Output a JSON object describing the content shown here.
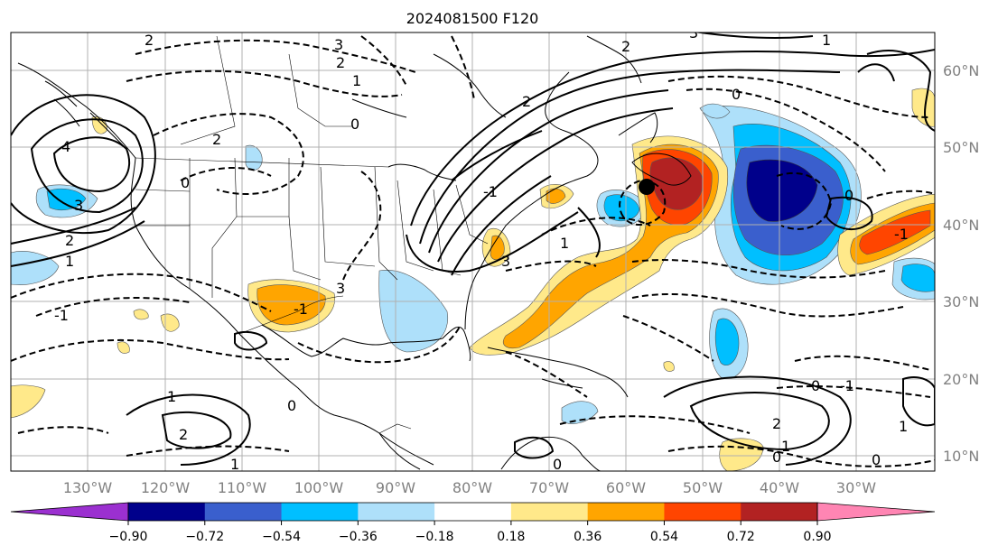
{
  "title": "2024081500 F120",
  "map": {
    "longitude_labels": [
      "130°W",
      "120°W",
      "110°W",
      "100°W",
      "90°W",
      "80°W",
      "70°W",
      "60°W",
      "50°W",
      "40°W",
      "30°W"
    ],
    "latitude_labels": [
      "60°N",
      "50°N",
      "40°N",
      "30°N",
      "20°N",
      "10°N"
    ],
    "contour_labels": [
      "2",
      "3",
      "2",
      "1",
      "0",
      "2",
      "-1",
      "3",
      "1",
      "0",
      "4",
      "3",
      "2",
      "1",
      "2",
      "0",
      "-1",
      "3",
      "-1",
      "0",
      "2",
      "3",
      "1",
      "2",
      "0",
      "0",
      "-1",
      "1",
      "2",
      "1",
      "0",
      "1",
      "-1",
      "0",
      "0",
      "1"
    ],
    "marker": "black-dot"
  },
  "colorbar": {
    "tick_labels": [
      "−0.90",
      "−0.72",
      "−0.54",
      "−0.36",
      "−0.18",
      "0.18",
      "0.36",
      "0.54",
      "0.72",
      "0.90"
    ],
    "colors": [
      "#9b30d0",
      "#00008b",
      "#3a5fcd",
      "#00bfff",
      "#aee0fa",
      "#ffffff",
      "#ffe98a",
      "#ffa500",
      "#ff4500",
      "#b22222",
      "#ff85b3"
    ]
  }
}
